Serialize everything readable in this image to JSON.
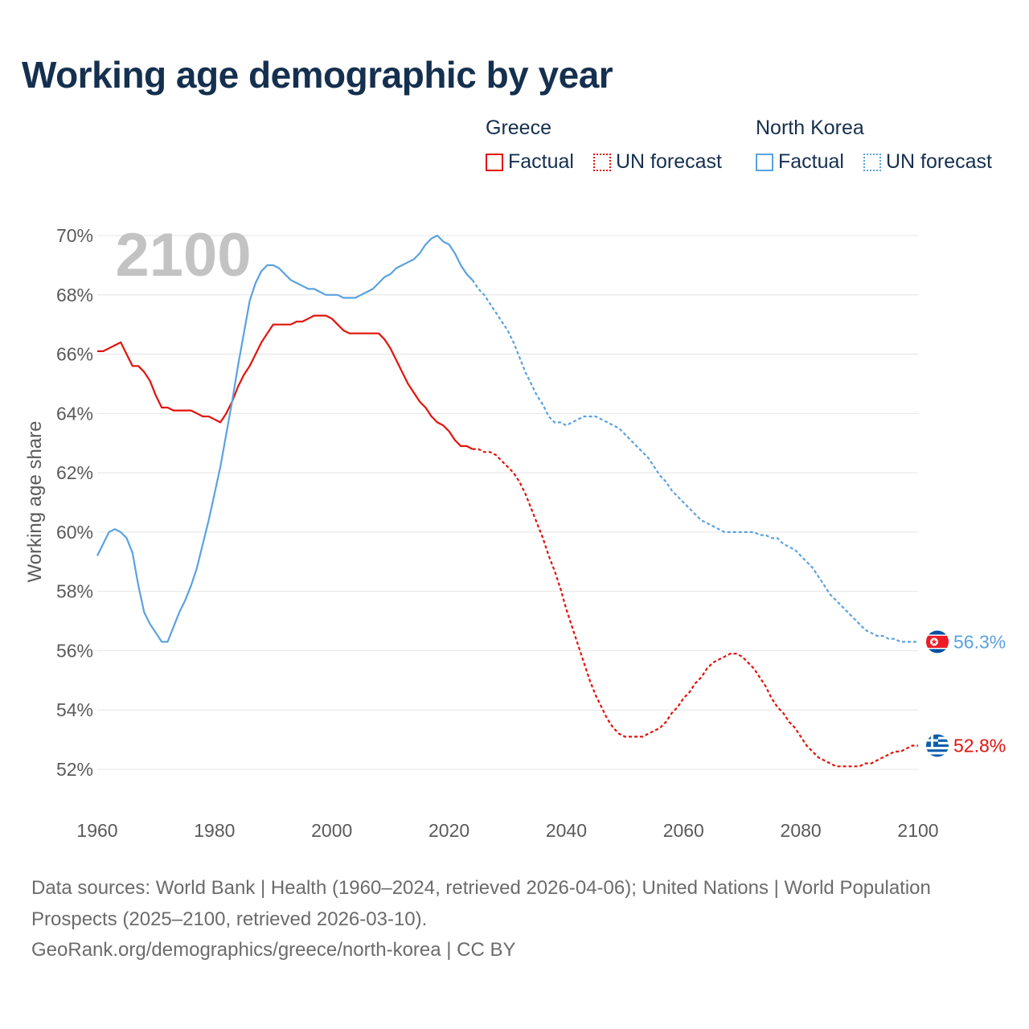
{
  "title": "Working age demographic by year",
  "legend": {
    "groups": [
      {
        "name": "Greece",
        "color": "#e3120b",
        "items": [
          {
            "label": "Factual",
            "style": "solid"
          },
          {
            "label": "UN forecast",
            "style": "dotted"
          }
        ]
      },
      {
        "name": "North Korea",
        "color": "#5aa2e0",
        "items": [
          {
            "label": "Factual",
            "style": "solid"
          },
          {
            "label": "UN forecast",
            "style": "dotted"
          }
        ]
      }
    ]
  },
  "year_watermark": "2100",
  "footer": {
    "sources": "Data sources: World Bank | Health (1960–2024, retrieved 2026-04-06); United Nations | World Population Prospects (2025–2100, retrieved 2026-03-10).",
    "credit": "GeoRank.org/demographics/greece/north-korea | CC BY"
  },
  "chart_data": {
    "type": "line",
    "title": "Working age demographic by year",
    "xlabel": "",
    "ylabel": "Working age share",
    "xlim": [
      1960,
      2100
    ],
    "ylim": [
      51,
      70
    ],
    "x_ticks": [
      1960,
      1980,
      2000,
      2020,
      2040,
      2060,
      2080,
      2100
    ],
    "y_ticks": [
      52,
      54,
      56,
      58,
      60,
      62,
      64,
      66,
      68,
      70
    ],
    "y_tick_labels": [
      "52%",
      "54%",
      "56%",
      "58%",
      "60%",
      "62%",
      "64%",
      "66%",
      "68%",
      "70%"
    ],
    "grid": true,
    "factual_end_year": 2024,
    "series": [
      {
        "name": "Greece",
        "color": "#e3120b",
        "end_label": "52.8%",
        "end_icon": "greece-flag-icon",
        "points": [
          [
            1960,
            66.1
          ],
          [
            1961,
            66.1
          ],
          [
            1962,
            66.2
          ],
          [
            1963,
            66.3
          ],
          [
            1964,
            66.4
          ],
          [
            1965,
            66.0
          ],
          [
            1966,
            65.6
          ],
          [
            1967,
            65.6
          ],
          [
            1968,
            65.4
          ],
          [
            1969,
            65.1
          ],
          [
            1970,
            64.6
          ],
          [
            1971,
            64.2
          ],
          [
            1972,
            64.2
          ],
          [
            1973,
            64.1
          ],
          [
            1974,
            64.1
          ],
          [
            1975,
            64.1
          ],
          [
            1976,
            64.1
          ],
          [
            1977,
            64.0
          ],
          [
            1978,
            63.9
          ],
          [
            1979,
            63.9
          ],
          [
            1980,
            63.8
          ],
          [
            1981,
            63.7
          ],
          [
            1982,
            64.0
          ],
          [
            1983,
            64.4
          ],
          [
            1984,
            64.9
          ],
          [
            1985,
            65.3
          ],
          [
            1986,
            65.6
          ],
          [
            1987,
            66.0
          ],
          [
            1988,
            66.4
          ],
          [
            1989,
            66.7
          ],
          [
            1990,
            67.0
          ],
          [
            1991,
            67.0
          ],
          [
            1992,
            67.0
          ],
          [
            1993,
            67.0
          ],
          [
            1994,
            67.1
          ],
          [
            1995,
            67.1
          ],
          [
            1996,
            67.2
          ],
          [
            1997,
            67.3
          ],
          [
            1998,
            67.3
          ],
          [
            1999,
            67.3
          ],
          [
            2000,
            67.2
          ],
          [
            2001,
            67.0
          ],
          [
            2002,
            66.8
          ],
          [
            2003,
            66.7
          ],
          [
            2004,
            66.7
          ],
          [
            2005,
            66.7
          ],
          [
            2006,
            66.7
          ],
          [
            2007,
            66.7
          ],
          [
            2008,
            66.7
          ],
          [
            2009,
            66.5
          ],
          [
            2010,
            66.2
          ],
          [
            2011,
            65.8
          ],
          [
            2012,
            65.4
          ],
          [
            2013,
            65.0
          ],
          [
            2014,
            64.7
          ],
          [
            2015,
            64.4
          ],
          [
            2016,
            64.2
          ],
          [
            2017,
            63.9
          ],
          [
            2018,
            63.7
          ],
          [
            2019,
            63.6
          ],
          [
            2020,
            63.4
          ],
          [
            2021,
            63.1
          ],
          [
            2022,
            62.9
          ],
          [
            2023,
            62.9
          ],
          [
            2024,
            62.8
          ],
          [
            2025,
            62.8
          ],
          [
            2026,
            62.7
          ],
          [
            2027,
            62.7
          ],
          [
            2028,
            62.6
          ],
          [
            2029,
            62.4
          ],
          [
            2030,
            62.2
          ],
          [
            2031,
            62.0
          ],
          [
            2032,
            61.7
          ],
          [
            2033,
            61.3
          ],
          [
            2034,
            60.8
          ],
          [
            2035,
            60.3
          ],
          [
            2036,
            59.8
          ],
          [
            2037,
            59.2
          ],
          [
            2038,
            58.7
          ],
          [
            2039,
            58.1
          ],
          [
            2040,
            57.4
          ],
          [
            2041,
            56.8
          ],
          [
            2042,
            56.2
          ],
          [
            2043,
            55.6
          ],
          [
            2044,
            55.0
          ],
          [
            2045,
            54.5
          ],
          [
            2046,
            54.1
          ],
          [
            2047,
            53.7
          ],
          [
            2048,
            53.4
          ],
          [
            2049,
            53.2
          ],
          [
            2050,
            53.1
          ],
          [
            2051,
            53.1
          ],
          [
            2052,
            53.1
          ],
          [
            2053,
            53.1
          ],
          [
            2054,
            53.2
          ],
          [
            2055,
            53.3
          ],
          [
            2056,
            53.4
          ],
          [
            2057,
            53.6
          ],
          [
            2058,
            53.9
          ],
          [
            2059,
            54.1
          ],
          [
            2060,
            54.4
          ],
          [
            2061,
            54.6
          ],
          [
            2062,
            54.9
          ],
          [
            2063,
            55.1
          ],
          [
            2064,
            55.4
          ],
          [
            2065,
            55.6
          ],
          [
            2066,
            55.7
          ],
          [
            2067,
            55.8
          ],
          [
            2068,
            55.9
          ],
          [
            2069,
            55.9
          ],
          [
            2070,
            55.8
          ],
          [
            2071,
            55.6
          ],
          [
            2072,
            55.4
          ],
          [
            2073,
            55.1
          ],
          [
            2074,
            54.8
          ],
          [
            2075,
            54.4
          ],
          [
            2076,
            54.1
          ],
          [
            2077,
            53.9
          ],
          [
            2078,
            53.6
          ],
          [
            2079,
            53.4
          ],
          [
            2080,
            53.1
          ],
          [
            2081,
            52.8
          ],
          [
            2082,
            52.6
          ],
          [
            2083,
            52.4
          ],
          [
            2084,
            52.3
          ],
          [
            2085,
            52.2
          ],
          [
            2086,
            52.1
          ],
          [
            2087,
            52.1
          ],
          [
            2088,
            52.1
          ],
          [
            2089,
            52.1
          ],
          [
            2090,
            52.1
          ],
          [
            2091,
            52.2
          ],
          [
            2092,
            52.2
          ],
          [
            2093,
            52.3
          ],
          [
            2094,
            52.4
          ],
          [
            2095,
            52.5
          ],
          [
            2096,
            52.6
          ],
          [
            2097,
            52.6
          ],
          [
            2098,
            52.7
          ],
          [
            2099,
            52.8
          ],
          [
            2100,
            52.8
          ]
        ]
      },
      {
        "name": "North Korea",
        "color": "#5aa2e0",
        "end_label": "56.3%",
        "end_icon": "north-korea-flag-icon",
        "points": [
          [
            1960,
            59.2
          ],
          [
            1961,
            59.6
          ],
          [
            1962,
            60.0
          ],
          [
            1963,
            60.1
          ],
          [
            1964,
            60.0
          ],
          [
            1965,
            59.8
          ],
          [
            1966,
            59.3
          ],
          [
            1967,
            58.2
          ],
          [
            1968,
            57.3
          ],
          [
            1969,
            56.9
          ],
          [
            1970,
            56.6
          ],
          [
            1971,
            56.3
          ],
          [
            1972,
            56.3
          ],
          [
            1973,
            56.8
          ],
          [
            1974,
            57.3
          ],
          [
            1975,
            57.7
          ],
          [
            1976,
            58.2
          ],
          [
            1977,
            58.8
          ],
          [
            1978,
            59.6
          ],
          [
            1979,
            60.4
          ],
          [
            1980,
            61.3
          ],
          [
            1981,
            62.2
          ],
          [
            1982,
            63.3
          ],
          [
            1983,
            64.4
          ],
          [
            1984,
            65.6
          ],
          [
            1985,
            66.7
          ],
          [
            1986,
            67.8
          ],
          [
            1987,
            68.4
          ],
          [
            1988,
            68.8
          ],
          [
            1989,
            69.0
          ],
          [
            1990,
            69.0
          ],
          [
            1991,
            68.9
          ],
          [
            1992,
            68.7
          ],
          [
            1993,
            68.5
          ],
          [
            1994,
            68.4
          ],
          [
            1995,
            68.3
          ],
          [
            1996,
            68.2
          ],
          [
            1997,
            68.2
          ],
          [
            1998,
            68.1
          ],
          [
            1999,
            68.0
          ],
          [
            2000,
            68.0
          ],
          [
            2001,
            68.0
          ],
          [
            2002,
            67.9
          ],
          [
            2003,
            67.9
          ],
          [
            2004,
            67.9
          ],
          [
            2005,
            68.0
          ],
          [
            2006,
            68.1
          ],
          [
            2007,
            68.2
          ],
          [
            2008,
            68.4
          ],
          [
            2009,
            68.6
          ],
          [
            2010,
            68.7
          ],
          [
            2011,
            68.9
          ],
          [
            2012,
            69.0
          ],
          [
            2013,
            69.1
          ],
          [
            2014,
            69.2
          ],
          [
            2015,
            69.4
          ],
          [
            2016,
            69.7
          ],
          [
            2017,
            69.9
          ],
          [
            2018,
            70.0
          ],
          [
            2019,
            69.8
          ],
          [
            2020,
            69.7
          ],
          [
            2021,
            69.4
          ],
          [
            2022,
            69.0
          ],
          [
            2023,
            68.7
          ],
          [
            2024,
            68.5
          ],
          [
            2025,
            68.2
          ],
          [
            2026,
            68.0
          ],
          [
            2027,
            67.7
          ],
          [
            2028,
            67.4
          ],
          [
            2029,
            67.1
          ],
          [
            2030,
            66.8
          ],
          [
            2031,
            66.4
          ],
          [
            2032,
            65.9
          ],
          [
            2033,
            65.4
          ],
          [
            2034,
            65.0
          ],
          [
            2035,
            64.6
          ],
          [
            2036,
            64.3
          ],
          [
            2037,
            63.9
          ],
          [
            2038,
            63.7
          ],
          [
            2039,
            63.7
          ],
          [
            2040,
            63.6
          ],
          [
            2041,
            63.7
          ],
          [
            2042,
            63.8
          ],
          [
            2043,
            63.9
          ],
          [
            2044,
            63.9
          ],
          [
            2045,
            63.9
          ],
          [
            2046,
            63.8
          ],
          [
            2047,
            63.7
          ],
          [
            2048,
            63.6
          ],
          [
            2049,
            63.5
          ],
          [
            2050,
            63.3
          ],
          [
            2051,
            63.1
          ],
          [
            2052,
            62.9
          ],
          [
            2053,
            62.7
          ],
          [
            2054,
            62.5
          ],
          [
            2055,
            62.2
          ],
          [
            2056,
            61.9
          ],
          [
            2057,
            61.7
          ],
          [
            2058,
            61.4
          ],
          [
            2059,
            61.2
          ],
          [
            2060,
            61.0
          ],
          [
            2061,
            60.8
          ],
          [
            2062,
            60.6
          ],
          [
            2063,
            60.4
          ],
          [
            2064,
            60.3
          ],
          [
            2065,
            60.2
          ],
          [
            2066,
            60.1
          ],
          [
            2067,
            60.0
          ],
          [
            2068,
            60.0
          ],
          [
            2069,
            60.0
          ],
          [
            2070,
            60.0
          ],
          [
            2071,
            60.0
          ],
          [
            2072,
            60.0
          ],
          [
            2073,
            59.9
          ],
          [
            2074,
            59.9
          ],
          [
            2075,
            59.8
          ],
          [
            2076,
            59.8
          ],
          [
            2077,
            59.6
          ],
          [
            2078,
            59.5
          ],
          [
            2079,
            59.4
          ],
          [
            2080,
            59.2
          ],
          [
            2081,
            59.0
          ],
          [
            2082,
            58.8
          ],
          [
            2083,
            58.5
          ],
          [
            2084,
            58.2
          ],
          [
            2085,
            57.9
          ],
          [
            2086,
            57.7
          ],
          [
            2087,
            57.5
          ],
          [
            2088,
            57.3
          ],
          [
            2089,
            57.1
          ],
          [
            2090,
            56.9
          ],
          [
            2091,
            56.7
          ],
          [
            2092,
            56.6
          ],
          [
            2093,
            56.5
          ],
          [
            2094,
            56.5
          ],
          [
            2095,
            56.4
          ],
          [
            2096,
            56.4
          ],
          [
            2097,
            56.3
          ],
          [
            2098,
            56.3
          ],
          [
            2099,
            56.3
          ],
          [
            2100,
            56.3
          ]
        ]
      }
    ]
  }
}
